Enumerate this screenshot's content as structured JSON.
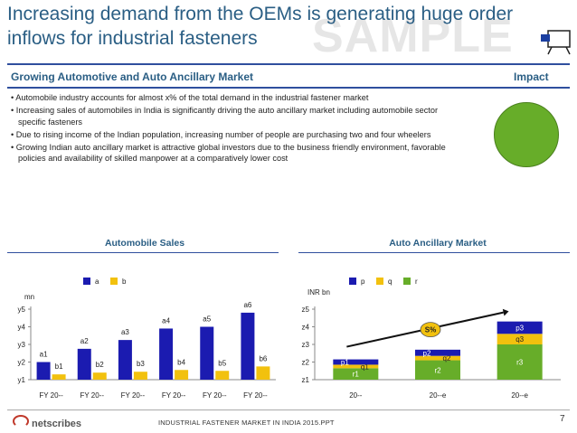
{
  "header": {
    "title": "Increasing demand from the OEMs is generating huge order inflows for industrial fasteners",
    "watermark": "SAMPLE"
  },
  "section": {
    "heading": "Growing Automotive and Auto Ancillary Market",
    "impact_label": "Impact",
    "impact_color": "#67ad29"
  },
  "bullets": [
    "Automobile industry accounts for almost x% of the total demand in the industrial fastener market",
    "Increasing sales of automobiles in India is significantly driving the auto ancillary market including automobile sector specific fasteners",
    "Due to rising income of the Indian population, increasing number of people are purchasing two and four wheelers",
    "Growing Indian auto ancillary market is attractive global investors due to the business friendly environment, favorable policies and availability of skilled manpower at a comparatively lower cost"
  ],
  "footer": {
    "logo": "netscribes",
    "text": "INDUSTRIAL FASTENER MARKET IN INDIA 2015.PPT",
    "page": "7"
  },
  "chart_data": [
    {
      "type": "bar",
      "title": "Automobile Sales",
      "unit_label": "mn",
      "categories": [
        "FY 20--",
        "FY 20--",
        "FY 20--",
        "FY 20--",
        "FY 20--",
        "FY 20--"
      ],
      "y_tick_labels": [
        "y1",
        "y2",
        "y3",
        "y4",
        "y5"
      ],
      "ylim": [
        0,
        4
      ],
      "series": [
        {
          "name": "a",
          "color": "#1b1bb0",
          "values": [
            1.0,
            1.75,
            2.25,
            2.9,
            3.0,
            3.8
          ],
          "labels": [
            "a1",
            "a2",
            "a3",
            "a4",
            "a5",
            "a6"
          ]
        },
        {
          "name": "b",
          "color": "#f2c10e",
          "values": [
            0.3,
            0.4,
            0.45,
            0.55,
            0.5,
            0.75
          ],
          "labels": [
            "b1",
            "b2",
            "b3",
            "b4",
            "b5",
            "b6"
          ]
        }
      ]
    },
    {
      "type": "bar",
      "stacked": true,
      "title": "Auto Ancillary Market",
      "unit_label": "INR bn",
      "categories": [
        "20--",
        "20--e",
        "20--e"
      ],
      "y_tick_labels": [
        "z1",
        "z2",
        "z3",
        "z4",
        "z5"
      ],
      "ylim": [
        0,
        4
      ],
      "cagr_label": "S%",
      "series": [
        {
          "name": "r",
          "color": "#67ad29",
          "values": [
            0.65,
            1.1,
            2.0
          ],
          "labels": [
            "r1",
            "r2",
            "r3"
          ]
        },
        {
          "name": "q",
          "color": "#f2c10e",
          "values": [
            0.2,
            0.25,
            0.6
          ],
          "labels": [
            "q1",
            "q2",
            "q3"
          ]
        },
        {
          "name": "p",
          "color": "#1b1bb0",
          "values": [
            0.3,
            0.35,
            0.7
          ],
          "labels": [
            "p1",
            "p2",
            "p3"
          ]
        }
      ]
    }
  ]
}
